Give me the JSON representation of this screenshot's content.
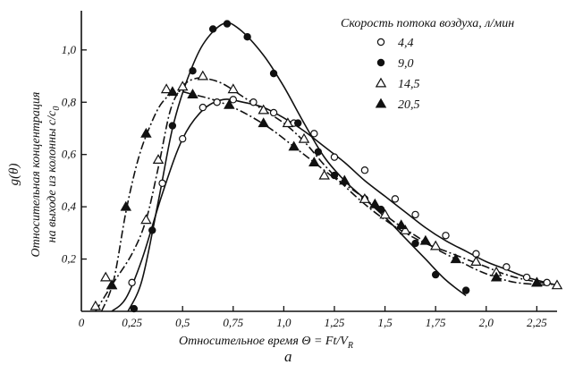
{
  "chart_data": {
    "type": "scatter",
    "panel_label": "a",
    "xlabel": "Относительное время  Θ = Ft/V",
    "xlabel_subscript": "R",
    "ylabel_symbol": "g(θ)",
    "ylabel_line1": "Относительная концентрация",
    "ylabel_line2": "на выходе из колонны c/c",
    "ylabel_subscript": "0",
    "legend_title": "Скорость потока воздуха, л/мин",
    "legend_placement": "top-right",
    "xlim": [
      0,
      2.35
    ],
    "ylim": [
      0,
      1.15
    ],
    "x_ticks": [
      {
        "value": 0,
        "label": "0"
      },
      {
        "value": 0.25,
        "label": "0,25"
      },
      {
        "value": 0.5,
        "label": "0,5"
      },
      {
        "value": 0.75,
        "label": "0,75"
      },
      {
        "value": 1.0,
        "label": "1,0"
      },
      {
        "value": 1.25,
        "label": "1,25"
      },
      {
        "value": 1.5,
        "label": "1,5"
      },
      {
        "value": 1.75,
        "label": "1,75"
      },
      {
        "value": 2.0,
        "label": "2,0"
      },
      {
        "value": 2.25,
        "label": "2,25"
      }
    ],
    "y_ticks": [
      {
        "value": 0.2,
        "label": "0,2"
      },
      {
        "value": 0.4,
        "label": "0,4"
      },
      {
        "value": 0.6,
        "label": "0,6"
      },
      {
        "value": 0.8,
        "label": "0,8"
      },
      {
        "value": 1.0,
        "label": "1,0"
      }
    ],
    "grid": false,
    "series": [
      {
        "name": "4,4",
        "marker": "circle-open",
        "line_style": "solid",
        "points": [
          [
            0.25,
            0.11
          ],
          [
            0.4,
            0.49
          ],
          [
            0.5,
            0.66
          ],
          [
            0.6,
            0.78
          ],
          [
            0.67,
            0.8
          ],
          [
            0.75,
            0.81
          ],
          [
            0.85,
            0.8
          ],
          [
            0.95,
            0.76
          ],
          [
            1.05,
            0.72
          ],
          [
            1.15,
            0.68
          ],
          [
            1.25,
            0.59
          ],
          [
            1.4,
            0.54
          ],
          [
            1.55,
            0.43
          ],
          [
            1.65,
            0.37
          ],
          [
            1.8,
            0.29
          ],
          [
            1.95,
            0.22
          ],
          [
            2.1,
            0.17
          ],
          [
            2.2,
            0.13
          ],
          [
            2.3,
            0.11
          ]
        ],
        "curve": [
          [
            0.15,
            0
          ],
          [
            0.22,
            0.05
          ],
          [
            0.3,
            0.2
          ],
          [
            0.4,
            0.45
          ],
          [
            0.5,
            0.66
          ],
          [
            0.6,
            0.77
          ],
          [
            0.7,
            0.81
          ],
          [
            0.8,
            0.8
          ],
          [
            0.9,
            0.78
          ],
          [
            1.0,
            0.74
          ],
          [
            1.1,
            0.69
          ],
          [
            1.2,
            0.63
          ],
          [
            1.3,
            0.57
          ],
          [
            1.4,
            0.5
          ],
          [
            1.5,
            0.44
          ],
          [
            1.6,
            0.38
          ],
          [
            1.7,
            0.32
          ],
          [
            1.8,
            0.27
          ],
          [
            1.9,
            0.23
          ],
          [
            2.0,
            0.19
          ],
          [
            2.1,
            0.16
          ],
          [
            2.2,
            0.13
          ],
          [
            2.35,
            0.1
          ]
        ]
      },
      {
        "name": "9,0",
        "marker": "circle-filled",
        "line_style": "solid",
        "points": [
          [
            0.26,
            0.01
          ],
          [
            0.35,
            0.31
          ],
          [
            0.45,
            0.71
          ],
          [
            0.55,
            0.92
          ],
          [
            0.65,
            1.08
          ],
          [
            0.72,
            1.1
          ],
          [
            0.82,
            1.05
          ],
          [
            0.95,
            0.91
          ],
          [
            1.07,
            0.72
          ],
          [
            1.17,
            0.61
          ],
          [
            1.25,
            0.52
          ],
          [
            1.4,
            0.43
          ],
          [
            1.48,
            0.39
          ],
          [
            1.65,
            0.26
          ],
          [
            1.75,
            0.14
          ],
          [
            1.9,
            0.08
          ]
        ],
        "curve": [
          [
            0.23,
            0
          ],
          [
            0.3,
            0.12
          ],
          [
            0.38,
            0.42
          ],
          [
            0.45,
            0.7
          ],
          [
            0.52,
            0.88
          ],
          [
            0.6,
            1.02
          ],
          [
            0.7,
            1.1
          ],
          [
            0.78,
            1.08
          ],
          [
            0.9,
            0.98
          ],
          [
            1.0,
            0.86
          ],
          [
            1.1,
            0.72
          ],
          [
            1.2,
            0.59
          ],
          [
            1.3,
            0.5
          ],
          [
            1.4,
            0.43
          ],
          [
            1.5,
            0.36
          ],
          [
            1.6,
            0.28
          ],
          [
            1.7,
            0.2
          ],
          [
            1.8,
            0.12
          ],
          [
            1.9,
            0.06
          ]
        ]
      },
      {
        "name": "14,5",
        "marker": "triangle-open",
        "line_style": "dashed",
        "points": [
          [
            0.07,
            0.02
          ],
          [
            0.12,
            0.13
          ],
          [
            0.15,
            0.1
          ],
          [
            0.32,
            0.35
          ],
          [
            0.38,
            0.58
          ],
          [
            0.42,
            0.85
          ],
          [
            0.5,
            0.86
          ],
          [
            0.6,
            0.9
          ],
          [
            0.75,
            0.85
          ],
          [
            0.9,
            0.77
          ],
          [
            1.02,
            0.72
          ],
          [
            1.1,
            0.66
          ],
          [
            1.2,
            0.52
          ],
          [
            1.4,
            0.43
          ],
          [
            1.5,
            0.37
          ],
          [
            1.6,
            0.31
          ],
          [
            1.75,
            0.25
          ],
          [
            1.95,
            0.19
          ],
          [
            2.05,
            0.15
          ],
          [
            2.25,
            0.11
          ],
          [
            2.35,
            0.1
          ]
        ],
        "curve": [
          [
            0.07,
            0
          ],
          [
            0.15,
            0.1
          ],
          [
            0.25,
            0.22
          ],
          [
            0.32,
            0.35
          ],
          [
            0.38,
            0.55
          ],
          [
            0.44,
            0.77
          ],
          [
            0.5,
            0.86
          ],
          [
            0.56,
            0.89
          ],
          [
            0.62,
            0.89
          ],
          [
            0.7,
            0.87
          ],
          [
            0.8,
            0.82
          ],
          [
            0.9,
            0.77
          ],
          [
            1.0,
            0.72
          ],
          [
            1.1,
            0.65
          ],
          [
            1.2,
            0.56
          ],
          [
            1.3,
            0.48
          ],
          [
            1.4,
            0.41
          ],
          [
            1.5,
            0.35
          ],
          [
            1.6,
            0.3
          ],
          [
            1.7,
            0.26
          ],
          [
            1.8,
            0.23
          ],
          [
            1.9,
            0.2
          ],
          [
            2.0,
            0.17
          ],
          [
            2.1,
            0.14
          ],
          [
            2.2,
            0.12
          ],
          [
            2.35,
            0.1
          ]
        ]
      },
      {
        "name": "20,5",
        "marker": "triangle-filled",
        "line_style": "dashed",
        "points": [
          [
            0.15,
            0.1
          ],
          [
            0.22,
            0.4
          ],
          [
            0.32,
            0.68
          ],
          [
            0.45,
            0.84
          ],
          [
            0.55,
            0.83
          ],
          [
            0.73,
            0.79
          ],
          [
            0.9,
            0.72
          ],
          [
            1.05,
            0.63
          ],
          [
            1.15,
            0.57
          ],
          [
            1.3,
            0.5
          ],
          [
            1.45,
            0.41
          ],
          [
            1.58,
            0.33
          ],
          [
            1.7,
            0.27
          ],
          [
            1.85,
            0.2
          ],
          [
            2.05,
            0.13
          ],
          [
            2.25,
            0.11
          ]
        ],
        "curve": [
          [
            0.1,
            0
          ],
          [
            0.16,
            0.12
          ],
          [
            0.22,
            0.38
          ],
          [
            0.28,
            0.58
          ],
          [
            0.34,
            0.71
          ],
          [
            0.4,
            0.8
          ],
          [
            0.47,
            0.84
          ],
          [
            0.55,
            0.83
          ],
          [
            0.65,
            0.81
          ],
          [
            0.75,
            0.78
          ],
          [
            0.85,
            0.74
          ],
          [
            0.95,
            0.69
          ],
          [
            1.05,
            0.63
          ],
          [
            1.15,
            0.57
          ],
          [
            1.25,
            0.51
          ],
          [
            1.35,
            0.46
          ],
          [
            1.45,
            0.4
          ],
          [
            1.55,
            0.34
          ],
          [
            1.65,
            0.29
          ],
          [
            1.75,
            0.24
          ],
          [
            1.85,
            0.2
          ],
          [
            1.95,
            0.16
          ],
          [
            2.05,
            0.13
          ],
          [
            2.15,
            0.11
          ],
          [
            2.3,
            0.1
          ]
        ]
      }
    ]
  }
}
